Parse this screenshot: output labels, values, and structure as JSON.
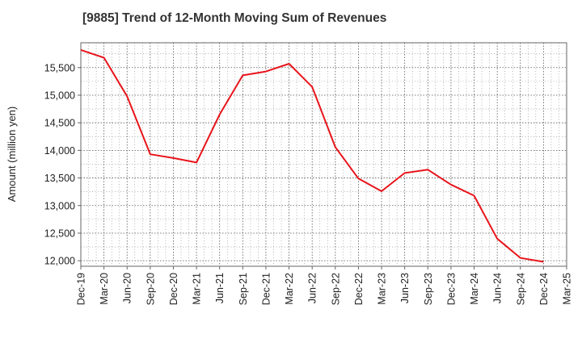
{
  "chart_data": {
    "type": "line",
    "title": "[9885]  Trend of 12-Month Moving Sum of Revenues",
    "xlabel": "",
    "ylabel": "Amount (million yen)",
    "x_tick_labels": [
      "Dec-19",
      "Mar-20",
      "Jun-20",
      "Sep-20",
      "Dec-20",
      "Mar-21",
      "Jun-21",
      "Sep-21",
      "Dec-21",
      "Mar-22",
      "Jun-22",
      "Sep-22",
      "Dec-22",
      "Mar-23",
      "Jun-23",
      "Sep-23",
      "Dec-23",
      "Mar-24",
      "Jun-24",
      "Sep-24",
      "Dec-24",
      "Mar-25"
    ],
    "y_ticks": [
      12000,
      12500,
      13000,
      13500,
      14000,
      14500,
      15000,
      15500
    ],
    "y_tick_labels": [
      "12,000",
      "12,500",
      "13,000",
      "13,500",
      "14,000",
      "14,500",
      "15,000",
      "15,500"
    ],
    "ylim": [
      11900,
      15950
    ],
    "grid": true,
    "line_color": "#e8141b",
    "series": [
      {
        "x": [
          "Dec-19",
          "Mar-20",
          "Jun-20",
          "Sep-20",
          "Dec-20",
          "Mar-21",
          "Jun-21",
          "Sep-21",
          "Dec-21",
          "Mar-22",
          "Jun-22",
          "Sep-22",
          "Dec-22",
          "Mar-23",
          "Jun-23",
          "Sep-23",
          "Dec-23",
          "Mar-24",
          "Jun-24",
          "Sep-24",
          "Dec-24"
        ],
        "values": [
          15820,
          15680,
          14980,
          13930,
          13860,
          13780,
          14650,
          15360,
          15430,
          15570,
          15150,
          14060,
          13490,
          13260,
          13590,
          13650,
          13380,
          13180,
          12400,
          12050,
          11980
        ]
      }
    ]
  }
}
